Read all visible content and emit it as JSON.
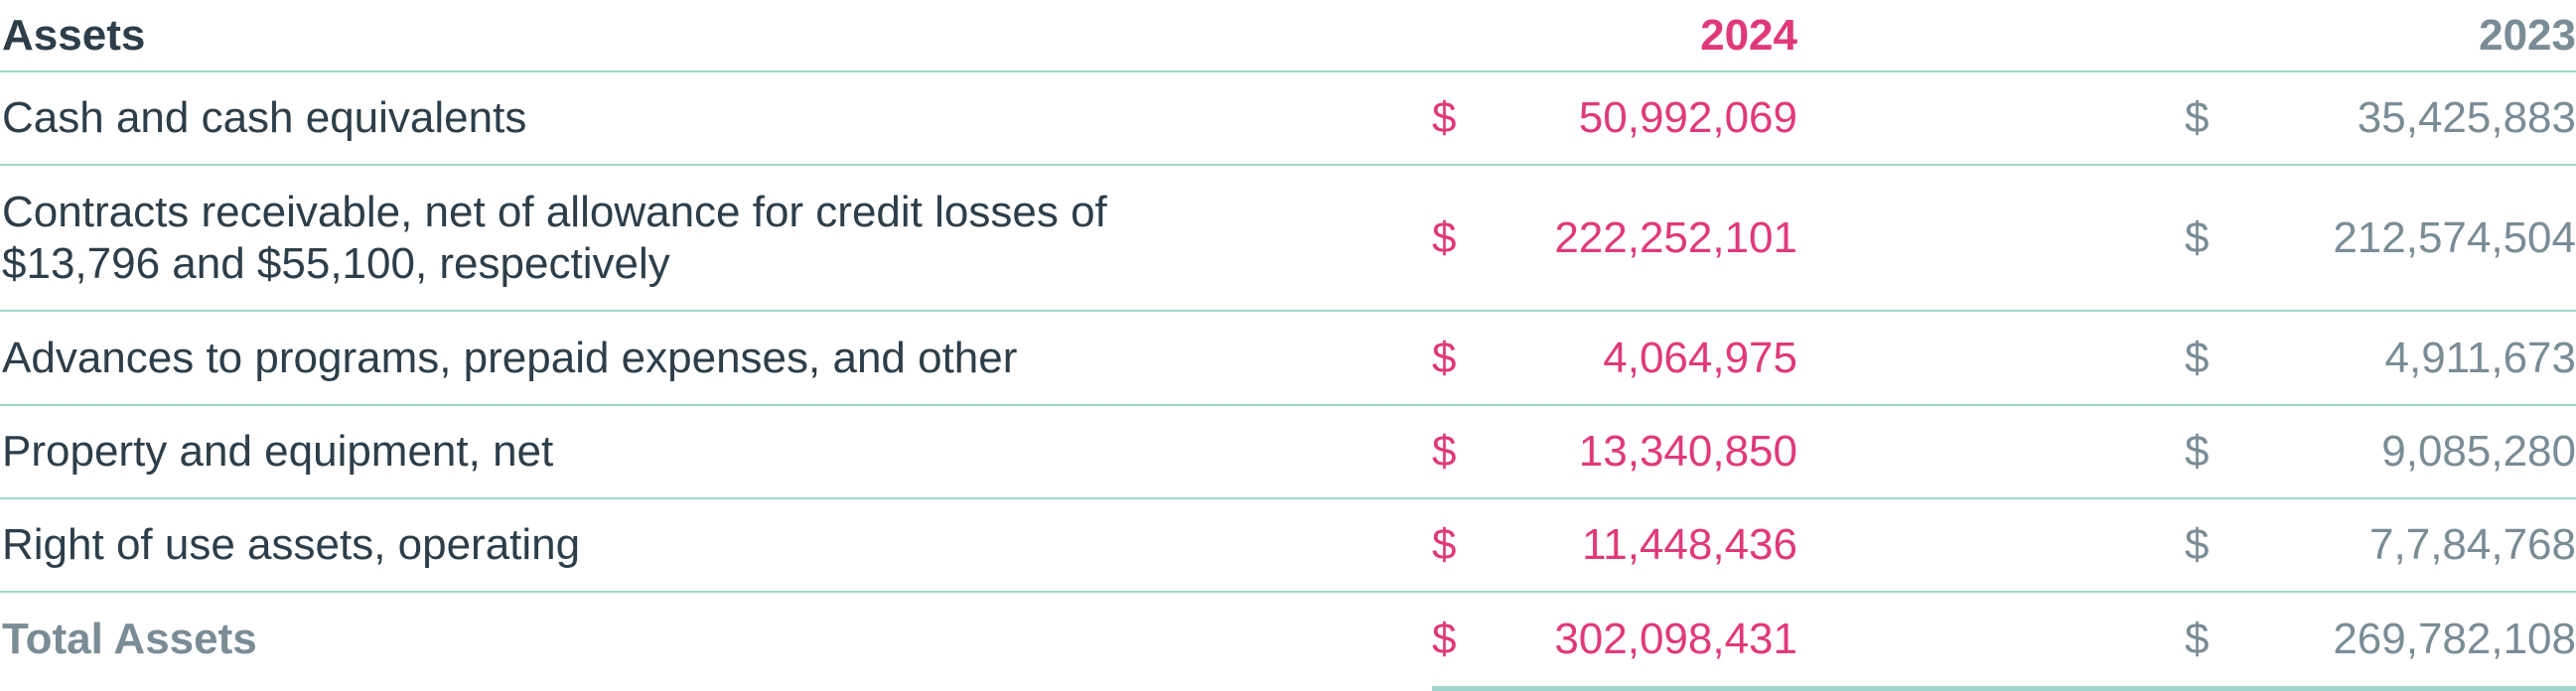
{
  "table": {
    "header": [
      "Assets",
      "2024",
      "2023"
    ],
    "rows": [
      [
        "Cash and cash equivalents",
        "$",
        "50,992,069",
        "$",
        "35,425,883"
      ],
      [
        "Contracts receivable, net of allowance for credit losses of $13,796 and $55,100, respectively",
        "$",
        "222,252,101",
        "$",
        "212,574,504"
      ],
      [
        "Advances to programs, prepaid expenses, and other",
        "$",
        "4,064,975",
        "$",
        "4,911,673"
      ],
      [
        "Property and equipment, net",
        "$",
        "13,340,850",
        "$",
        "9,085,280"
      ],
      [
        "Right of use assets, operating",
        "$",
        "11,448,436",
        "$",
        "7,7,84,768"
      ],
      [
        "Total Assets",
        "$",
        "302,098,431",
        "$",
        "269,782,108"
      ]
    ]
  }
}
